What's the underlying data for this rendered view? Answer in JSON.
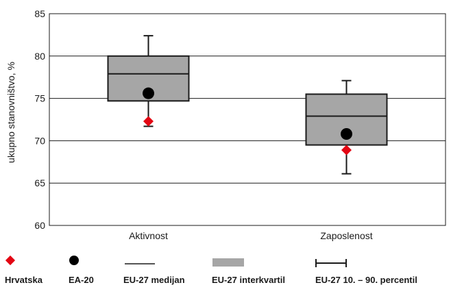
{
  "chart_data": {
    "type": "boxplot",
    "ylabel": "ukupno stanovništvo, %",
    "ylim": [
      60,
      85
    ],
    "yticks": [
      60,
      65,
      70,
      75,
      80,
      85
    ],
    "grid": true,
    "categories": [
      "Aktivnost",
      "Zaposlenost"
    ],
    "boxes": [
      {
        "category": "Aktivnost",
        "p10": 71.7,
        "q1": 74.7,
        "median": 77.9,
        "q3": 80.0,
        "p90": 82.4,
        "hr": 72.3,
        "ea20": 75.6
      },
      {
        "category": "Zaposlenost",
        "p10": 66.1,
        "q1": 69.5,
        "median": 72.9,
        "q3": 75.5,
        "p90": 77.1,
        "hr": 68.9,
        "ea20": 70.8
      }
    ],
    "colors": {
      "box_fill": "#a6a6a6",
      "box_stroke": "#1a1a1a",
      "hr_marker": "#e30613",
      "ea20_marker": "#000000",
      "grid": "#1a1a1a"
    },
    "legend": {
      "position": "bottom",
      "items": [
        {
          "label": "Hrvatska",
          "marker": "red-diamond-icon"
        },
        {
          "label": "EA-20",
          "marker": "black-circle-icon"
        },
        {
          "label": "EU-27 medijan",
          "marker": "line-icon"
        },
        {
          "label": "EU-27 interkvartil",
          "marker": "gray-rect-icon"
        },
        {
          "label": "EU-27 10. – 90. percentil",
          "marker": "whisker-icon"
        }
      ]
    }
  }
}
